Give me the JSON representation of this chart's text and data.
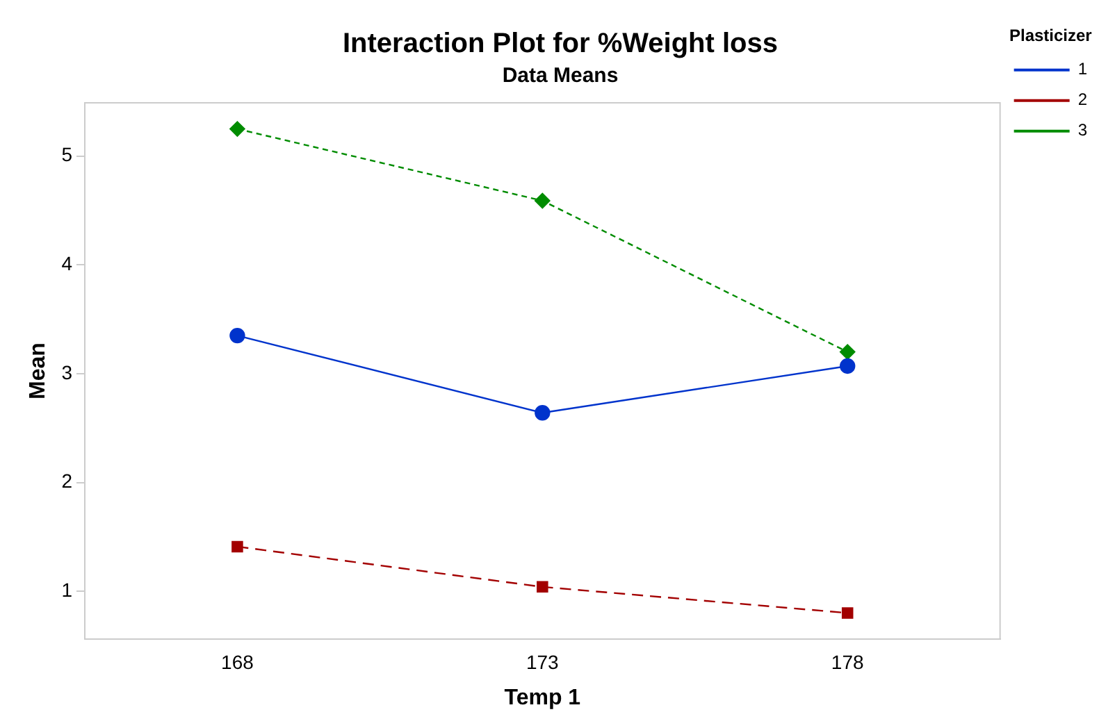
{
  "chart_data": {
    "type": "line",
    "title": "Interaction Plot for %Weight loss",
    "subtitle": "Data Means",
    "xlabel": "Temp 1",
    "ylabel": "Mean",
    "legend_title": "Plasticizer",
    "legend": "top right",
    "grid": false,
    "x": [
      168,
      173,
      178
    ],
    "xlim": [
      165.5,
      180.5
    ],
    "xticks": [
      168,
      173,
      178
    ],
    "ylim": [
      0.56,
      5.49
    ],
    "yticks": [
      1,
      2,
      3,
      4,
      5
    ],
    "series": [
      {
        "name": "1",
        "color": "#0033cc",
        "values": [
          3.35,
          2.64,
          3.07
        ],
        "marker": "circle",
        "line_style": "solid"
      },
      {
        "name": "2",
        "color": "#a30000",
        "values": [
          1.41,
          1.04,
          0.8
        ],
        "marker": "square",
        "line_style": "dashed"
      },
      {
        "name": "3",
        "color": "#008c00",
        "values": [
          5.25,
          4.59,
          3.2
        ],
        "marker": "diamond",
        "line_style": "dotted"
      }
    ]
  }
}
